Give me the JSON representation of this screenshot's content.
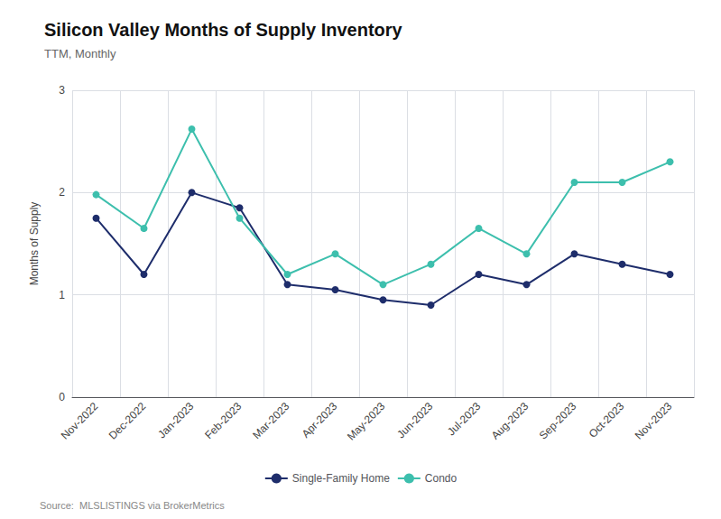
{
  "chart_data": {
    "type": "line",
    "title": "Silicon Valley Months of Supply Inventory",
    "subtitle": "TTM, Monthly",
    "ylabel": "Months of Supply",
    "source": "Source:  MLSLISTINGS via BrokerMetrics",
    "categories": [
      "Nov-2022",
      "Dec-2022",
      "Jan-2023",
      "Feb-2023",
      "Mar-2023",
      "Apr-2023",
      "May-2023",
      "Jun-2023",
      "Jul-2023",
      "Aug-2023",
      "Sep-2023",
      "Oct-2023",
      "Nov-2023"
    ],
    "series": [
      {
        "name": "Single-Family Home",
        "color": "#1e2d6b",
        "marker": "circle",
        "line_style": "solid",
        "values": [
          1.75,
          1.2,
          2.0,
          1.85,
          1.1,
          1.05,
          0.95,
          0.9,
          1.2,
          1.1,
          1.4,
          1.3,
          1.2
        ]
      },
      {
        "name": "Condo",
        "color": "#3dbfad",
        "marker": "circle",
        "line_style": "solid",
        "values": [
          1.98,
          1.65,
          2.62,
          1.75,
          1.2,
          1.4,
          1.1,
          1.3,
          1.65,
          1.4,
          2.1,
          2.1,
          2.3
        ]
      }
    ],
    "ylim": [
      0,
      3
    ],
    "yticks": [
      0,
      1,
      2,
      3
    ],
    "grid": true,
    "legend": "bottom"
  }
}
